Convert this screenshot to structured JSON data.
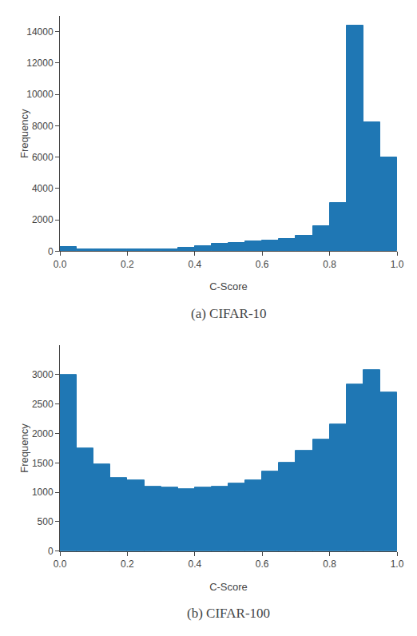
{
  "chart_data": [
    {
      "type": "histogram",
      "title": "(a) CIFAR-10",
      "xlabel": "C-Score",
      "ylabel": "Frequency",
      "bins": [
        0.0,
        0.05,
        0.1,
        0.15,
        0.2,
        0.25,
        0.3,
        0.35,
        0.4,
        0.45,
        0.5,
        0.55,
        0.6,
        0.65,
        0.7,
        0.75,
        0.8,
        0.85,
        0.9,
        0.95,
        1.0
      ],
      "values": [
        250,
        100,
        100,
        100,
        100,
        100,
        100,
        200,
        350,
        480,
        530,
        620,
        680,
        780,
        1000,
        1600,
        3100,
        14400,
        8200,
        6000
      ],
      "color": "#1f77b4",
      "xlim": [
        0.0,
        1.0
      ],
      "xticks": [
        {
          "value": 0.0,
          "label": "0.0"
        },
        0.2,
        0.4,
        0.6,
        0.8,
        {
          "value": 1.0,
          "label": "1.0"
        }
      ],
      "ylim": [
        0,
        15000
      ],
      "yticks": [
        0,
        2000,
        4000,
        6000,
        8000,
        10000,
        12000,
        14000
      ],
      "grid": false
    },
    {
      "type": "histogram",
      "title": "(b) CIFAR-100",
      "xlabel": "C-Score",
      "ylabel": "Frequency",
      "bins": [
        0.0,
        0.05,
        0.1,
        0.15,
        0.2,
        0.25,
        0.3,
        0.35,
        0.4,
        0.45,
        0.5,
        0.55,
        0.6,
        0.65,
        0.7,
        0.75,
        0.8,
        0.85,
        0.9,
        0.95,
        1.0
      ],
      "values": [
        3000,
        1750,
        1480,
        1250,
        1200,
        1100,
        1080,
        1060,
        1080,
        1100,
        1150,
        1200,
        1350,
        1500,
        1700,
        1900,
        2160,
        2840,
        3080,
        2700
      ],
      "color": "#1f77b4",
      "xlim": [
        0.0,
        1.0
      ],
      "xticks": [
        {
          "value": 0.0,
          "label": "0.0"
        },
        0.2,
        0.4,
        0.6,
        0.8,
        {
          "value": 1.0,
          "label": "1.0"
        }
      ],
      "ylim": [
        0,
        3500
      ],
      "yticks": [
        0,
        500,
        1000,
        1500,
        2000,
        2500,
        3000
      ],
      "grid": false
    }
  ]
}
